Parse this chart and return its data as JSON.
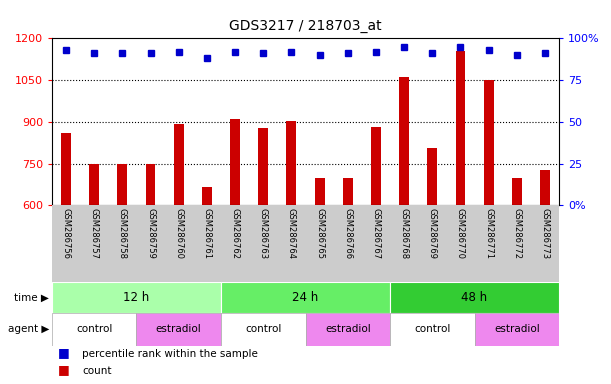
{
  "title": "GDS3217 / 218703_at",
  "samples": [
    "GSM286756",
    "GSM286757",
    "GSM286758",
    "GSM286759",
    "GSM286760",
    "GSM286761",
    "GSM286762",
    "GSM286763",
    "GSM286764",
    "GSM286765",
    "GSM286766",
    "GSM286767",
    "GSM286768",
    "GSM286769",
    "GSM286770",
    "GSM286771",
    "GSM286772",
    "GSM286773"
  ],
  "counts": [
    860,
    748,
    750,
    748,
    893,
    665,
    912,
    878,
    904,
    698,
    700,
    880,
    1060,
    808,
    1155,
    1050,
    700,
    728
  ],
  "percentile_ranks": [
    93,
    91,
    91,
    91,
    92,
    88,
    92,
    91,
    92,
    90,
    91,
    92,
    95,
    91,
    95,
    93,
    90,
    91
  ],
  "ylim_left": [
    600,
    1200
  ],
  "ylim_right": [
    0,
    100
  ],
  "yticks_left": [
    600,
    750,
    900,
    1050,
    1200
  ],
  "yticks_right": [
    0,
    25,
    50,
    75,
    100
  ],
  "ytick_labels_right": [
    "0%",
    "25",
    "50",
    "75",
    "100%"
  ],
  "bar_color": "#cc0000",
  "dot_color": "#0000cc",
  "grid_lines": [
    750,
    900,
    1050
  ],
  "time_groups": [
    {
      "label": "12 h",
      "start": 0,
      "end": 6,
      "color": "#aaffaa"
    },
    {
      "label": "24 h",
      "start": 6,
      "end": 12,
      "color": "#66ee66"
    },
    {
      "label": "48 h",
      "start": 12,
      "end": 18,
      "color": "#33cc33"
    }
  ],
  "agent_groups": [
    {
      "label": "control",
      "start": 0,
      "end": 3,
      "color": "#ffffff"
    },
    {
      "label": "estradiol",
      "start": 3,
      "end": 6,
      "color": "#ee88ee"
    },
    {
      "label": "control",
      "start": 6,
      "end": 9,
      "color": "#ffffff"
    },
    {
      "label": "estradiol",
      "start": 9,
      "end": 12,
      "color": "#ee88ee"
    },
    {
      "label": "control",
      "start": 12,
      "end": 15,
      "color": "#ffffff"
    },
    {
      "label": "estradiol",
      "start": 15,
      "end": 18,
      "color": "#ee88ee"
    }
  ],
  "tick_bg_color": "#cccccc",
  "bar_bottom": 600,
  "bar_width": 0.35
}
